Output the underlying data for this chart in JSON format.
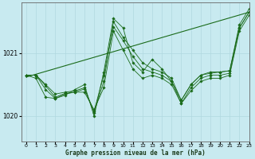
{
  "title": "Graphe pression niveau de la mer (hPa)",
  "background_color": "#c8eaf0",
  "line_color": "#1a6b1a",
  "grid_color": "#b0d8df",
  "xlim": [
    -0.5,
    23
  ],
  "ylim": [
    1019.6,
    1021.8
  ],
  "yticks": [
    1020,
    1021
  ],
  "xticks": [
    0,
    1,
    2,
    3,
    4,
    5,
    6,
    7,
    8,
    9,
    10,
    11,
    12,
    13,
    14,
    15,
    16,
    17,
    18,
    19,
    20,
    21,
    22,
    23
  ],
  "series_main": [
    [
      1020.65,
      1020.65,
      1020.5,
      1020.35,
      1020.38,
      1020.4,
      1020.45,
      1020.05,
      1020.55,
      1021.5,
      1021.25,
      1021.05,
      1020.85,
      1020.75,
      1020.7,
      1020.6,
      1020.25,
      1020.5,
      1020.65,
      1020.7,
      1020.7,
      1020.72,
      1021.45,
      1021.7
    ],
    [
      1020.65,
      1020.65,
      1020.48,
      1020.3,
      1020.36,
      1020.38,
      1020.43,
      1020.08,
      1020.65,
      1021.42,
      1021.2,
      1020.95,
      1020.75,
      1020.7,
      1020.65,
      1020.55,
      1020.2,
      1020.45,
      1020.6,
      1020.65,
      1020.65,
      1020.68,
      1021.4,
      1021.65
    ]
  ],
  "series_volatile": [
    [
      1020.65,
      1020.65,
      1020.42,
      1020.28,
      1020.33,
      1020.42,
      1020.5,
      1020.0,
      1020.7,
      1021.55,
      1021.4,
      1020.85,
      1020.7,
      1020.9,
      1020.75,
      1020.55,
      1020.25,
      1020.5,
      1020.65,
      1020.68,
      1020.7,
      1020.72,
      1021.4,
      1021.65
    ],
    [
      1020.65,
      1020.6,
      1020.3,
      1020.28,
      1020.35,
      1020.38,
      1020.38,
      1020.1,
      1020.45,
      1021.35,
      1021.05,
      1020.75,
      1020.6,
      1020.65,
      1020.6,
      1020.5,
      1020.2,
      1020.4,
      1020.55,
      1020.6,
      1020.6,
      1020.65,
      1021.35,
      1021.6
    ]
  ],
  "trend": {
    "x": [
      0,
      23
    ],
    "y": [
      1020.62,
      1021.65
    ]
  }
}
